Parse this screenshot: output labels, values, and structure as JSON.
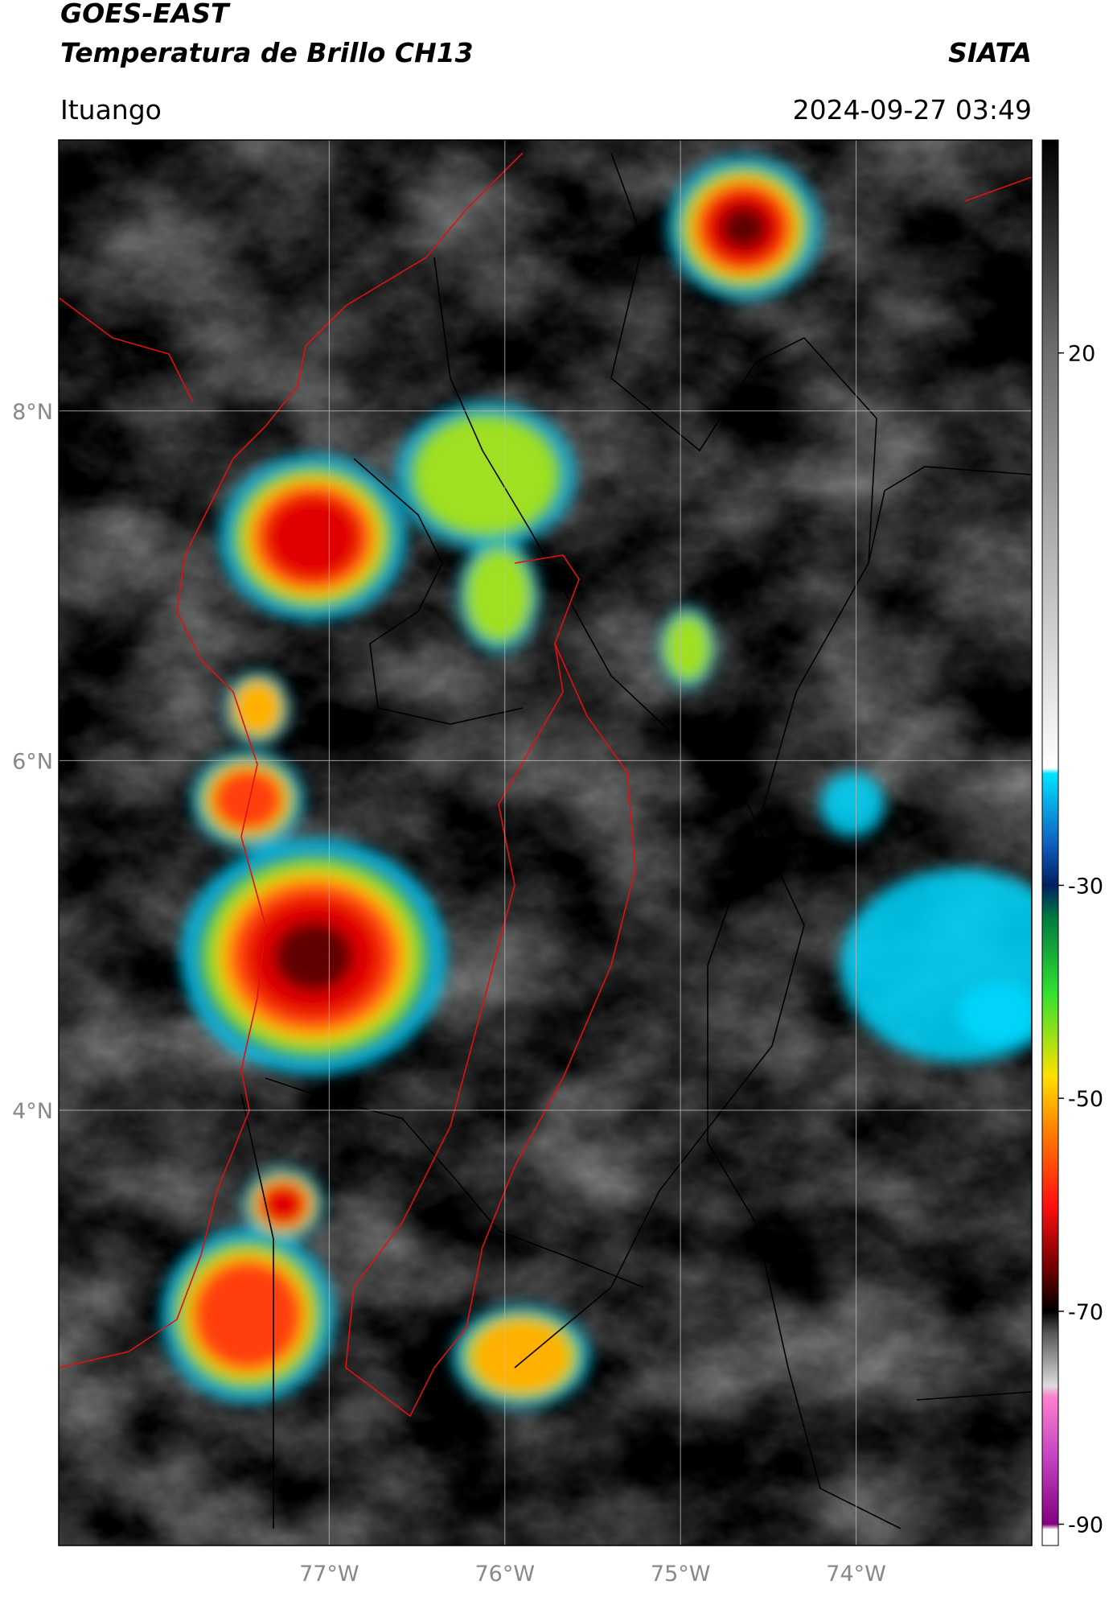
{
  "header": {
    "title": "GOES-EAST",
    "subtitle": "Temperatura de Brillo CH13",
    "brand": "SIATA",
    "location": "Ituango",
    "datetime": "2024-09-27 03:49"
  },
  "map": {
    "xlim": [
      -78.54,
      -73.0
    ],
    "ylim": [
      1.51,
      9.55
    ],
    "xticks": [
      {
        "value": -77,
        "label": "77°W"
      },
      {
        "value": -76,
        "label": "76°W"
      },
      {
        "value": -75,
        "label": "75°W"
      },
      {
        "value": -74,
        "label": "74°W"
      }
    ],
    "yticks": [
      {
        "value": 4,
        "label": "4°N"
      },
      {
        "value": 6,
        "label": "6°N"
      },
      {
        "value": 8,
        "label": "8°N"
      }
    ]
  },
  "colorbar": {
    "range": [
      -92,
      40
    ],
    "ticks": [
      20,
      -30,
      -50,
      -70,
      -90
    ],
    "stops": [
      {
        "value": 40,
        "color": "#000000"
      },
      {
        "value": 20,
        "color": "#6e6e6e"
      },
      {
        "value": -19,
        "color": "#ffffff"
      },
      {
        "value": -19.5,
        "color": "#00e5ff"
      },
      {
        "value": -26,
        "color": "#1060c0"
      },
      {
        "value": -30,
        "color": "#002060"
      },
      {
        "value": -33,
        "color": "#007a40"
      },
      {
        "value": -40,
        "color": "#30e030"
      },
      {
        "value": -48,
        "color": "#ffe000"
      },
      {
        "value": -53,
        "color": "#ff8000"
      },
      {
        "value": -60,
        "color": "#ff1010"
      },
      {
        "value": -66,
        "color": "#700000"
      },
      {
        "value": -70,
        "color": "#000000"
      },
      {
        "value": -72,
        "color": "#555555"
      },
      {
        "value": -77,
        "color": "#dddddd"
      },
      {
        "value": -78,
        "color": "#ff80d0"
      },
      {
        "value": -84,
        "color": "#c040c0"
      },
      {
        "value": -90,
        "color": "#800080"
      },
      {
        "value": -90.5,
        "color": "#ffffff"
      },
      {
        "value": -92,
        "color": "#ffffff"
      }
    ]
  }
}
